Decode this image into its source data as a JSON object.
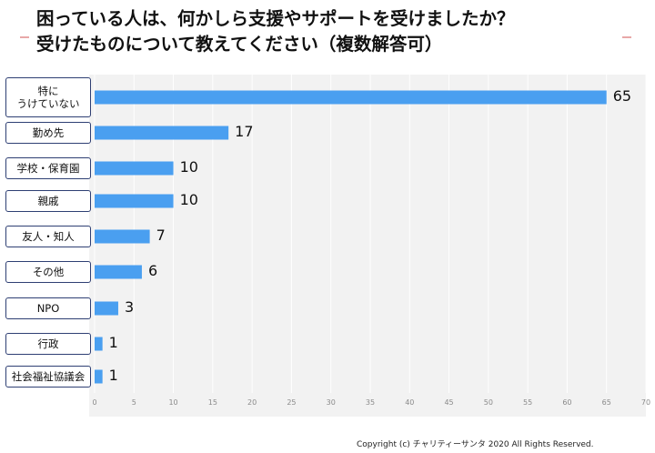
{
  "title_line1": "困っている人は、何かしら支援やサポートを受けましたか？",
  "title_line2": "受けたものについて教えてください（複数解答可）",
  "copyright": "Copyright (c) チャリティーサンタ 2020 All Rights Reserved.",
  "colors": {
    "bar": "#4a9ff0",
    "plot_bg": "#f2f2f2",
    "box_border": "#2e3f73"
  },
  "chart_data": {
    "type": "bar",
    "orientation": "horizontal",
    "title": "",
    "xlabel": "",
    "ylabel": "",
    "xlim": [
      0,
      70
    ],
    "ticks": [
      0,
      5,
      10,
      15,
      20,
      25,
      30,
      35,
      40,
      45,
      50,
      55,
      60,
      65,
      70
    ],
    "grid": true,
    "categories": [
      "特に\nうけていない",
      "勤め先",
      "学校・保育園",
      "親戚",
      "友人・知人",
      "その他",
      "NPO",
      "行政",
      "社会福祉協議会"
    ],
    "values": [
      65,
      17,
      10,
      10,
      7,
      6,
      3,
      1,
      1
    ]
  }
}
